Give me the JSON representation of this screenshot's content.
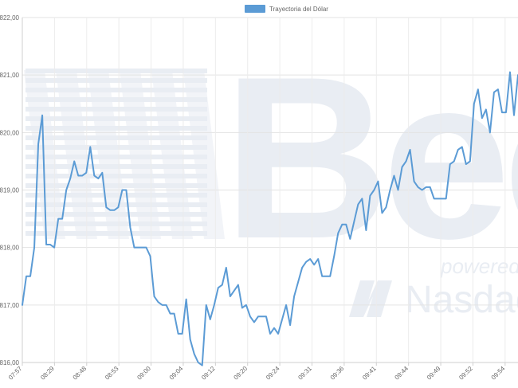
{
  "chart_data": {
    "type": "line",
    "title": "",
    "xlabel": "",
    "ylabel": "",
    "legend": {
      "position": "top-center"
    },
    "grid": true,
    "ylim": [
      816,
      822
    ],
    "y_ticks": [
      "816,00",
      "817,00",
      "818,00",
      "819,00",
      "820,00",
      "821,00",
      "822,00"
    ],
    "x_tick_labels": [
      "07:57",
      "08:29",
      "08:48",
      "08:53",
      "09:00",
      "09:04",
      "09:12",
      "09:20",
      "09:24",
      "09:31",
      "09:36",
      "09:41",
      "09:44",
      "09:49",
      "09:52",
      "09:54"
    ],
    "series": [
      {
        "name": "Trayectoria del Dólar",
        "color": "#5b9bd5",
        "values": [
          817.0,
          817.5,
          817.5,
          818.0,
          819.8,
          820.3,
          818.05,
          818.05,
          818.0,
          818.5,
          818.5,
          819.0,
          819.2,
          819.5,
          819.25,
          819.25,
          819.3,
          819.75,
          819.25,
          819.2,
          819.3,
          818.7,
          818.65,
          818.65,
          818.7,
          819.0,
          819.0,
          818.35,
          818.0,
          818.0,
          818.0,
          818.0,
          817.85,
          817.15,
          817.05,
          817.0,
          817.0,
          816.85,
          816.85,
          816.5,
          816.5,
          817.1,
          816.4,
          816.15,
          816.0,
          815.95,
          817.0,
          816.75,
          817.0,
          817.3,
          817.35,
          817.65,
          817.15,
          817.25,
          817.35,
          816.95,
          817.0,
          816.8,
          816.7,
          816.8,
          816.8,
          816.8,
          816.5,
          816.6,
          816.5,
          816.75,
          817.0,
          816.65,
          817.15,
          817.4,
          817.65,
          817.75,
          817.8,
          817.7,
          817.8,
          817.5,
          817.5,
          817.5,
          817.85,
          818.25,
          818.4,
          818.4,
          818.15,
          818.45,
          818.75,
          818.85,
          818.3,
          818.9,
          819.0,
          819.15,
          818.6,
          818.7,
          819.0,
          819.25,
          819.0,
          819.4,
          819.5,
          819.7,
          819.15,
          819.05,
          819.0,
          819.05,
          819.05,
          818.85,
          818.85,
          818.85,
          818.85,
          819.45,
          819.5,
          819.7,
          819.75,
          819.45,
          819.5,
          820.5,
          820.75,
          820.25,
          820.4,
          820.0,
          820.7,
          820.75,
          820.35,
          820.35,
          821.05,
          820.3,
          821.0
        ]
      }
    ]
  },
  "watermark": {
    "brand_text": "Bec",
    "powered_text": "powered b",
    "partner_text": "Nasdaq",
    "color": "#e9edf3"
  }
}
